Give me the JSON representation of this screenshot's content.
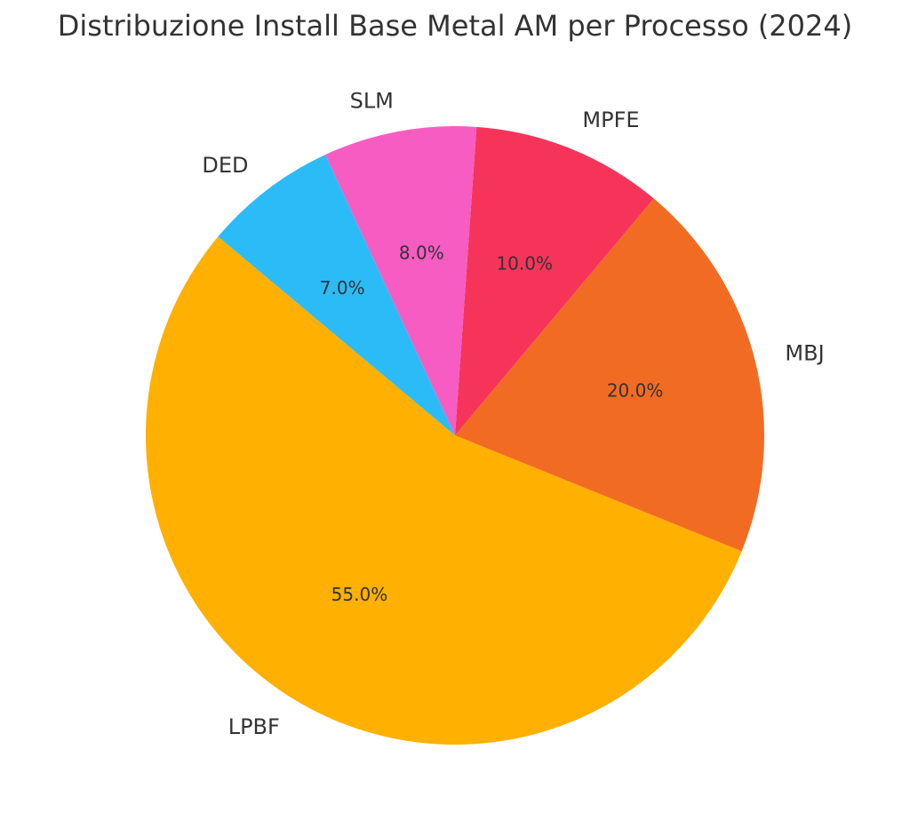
{
  "chart_data": {
    "type": "pie",
    "title": "Distribuzione Install Base Metal AM per Processo (2024)",
    "categories": [
      "LPBF",
      "MBJ",
      "MPFE",
      "SLM",
      "DED"
    ],
    "values": [
      55.0,
      20.0,
      10.0,
      8.0,
      7.0
    ],
    "percent_labels": [
      "55.0%",
      "20.0%",
      "10.0%",
      "8.0%",
      "7.0%"
    ],
    "colors": [
      "#FFB000",
      "#F26B23",
      "#F6345A",
      "#F75CC2",
      "#2BBCF8"
    ],
    "start_angle_deg": 140,
    "direction": "counterclockwise",
    "legend": "none"
  }
}
